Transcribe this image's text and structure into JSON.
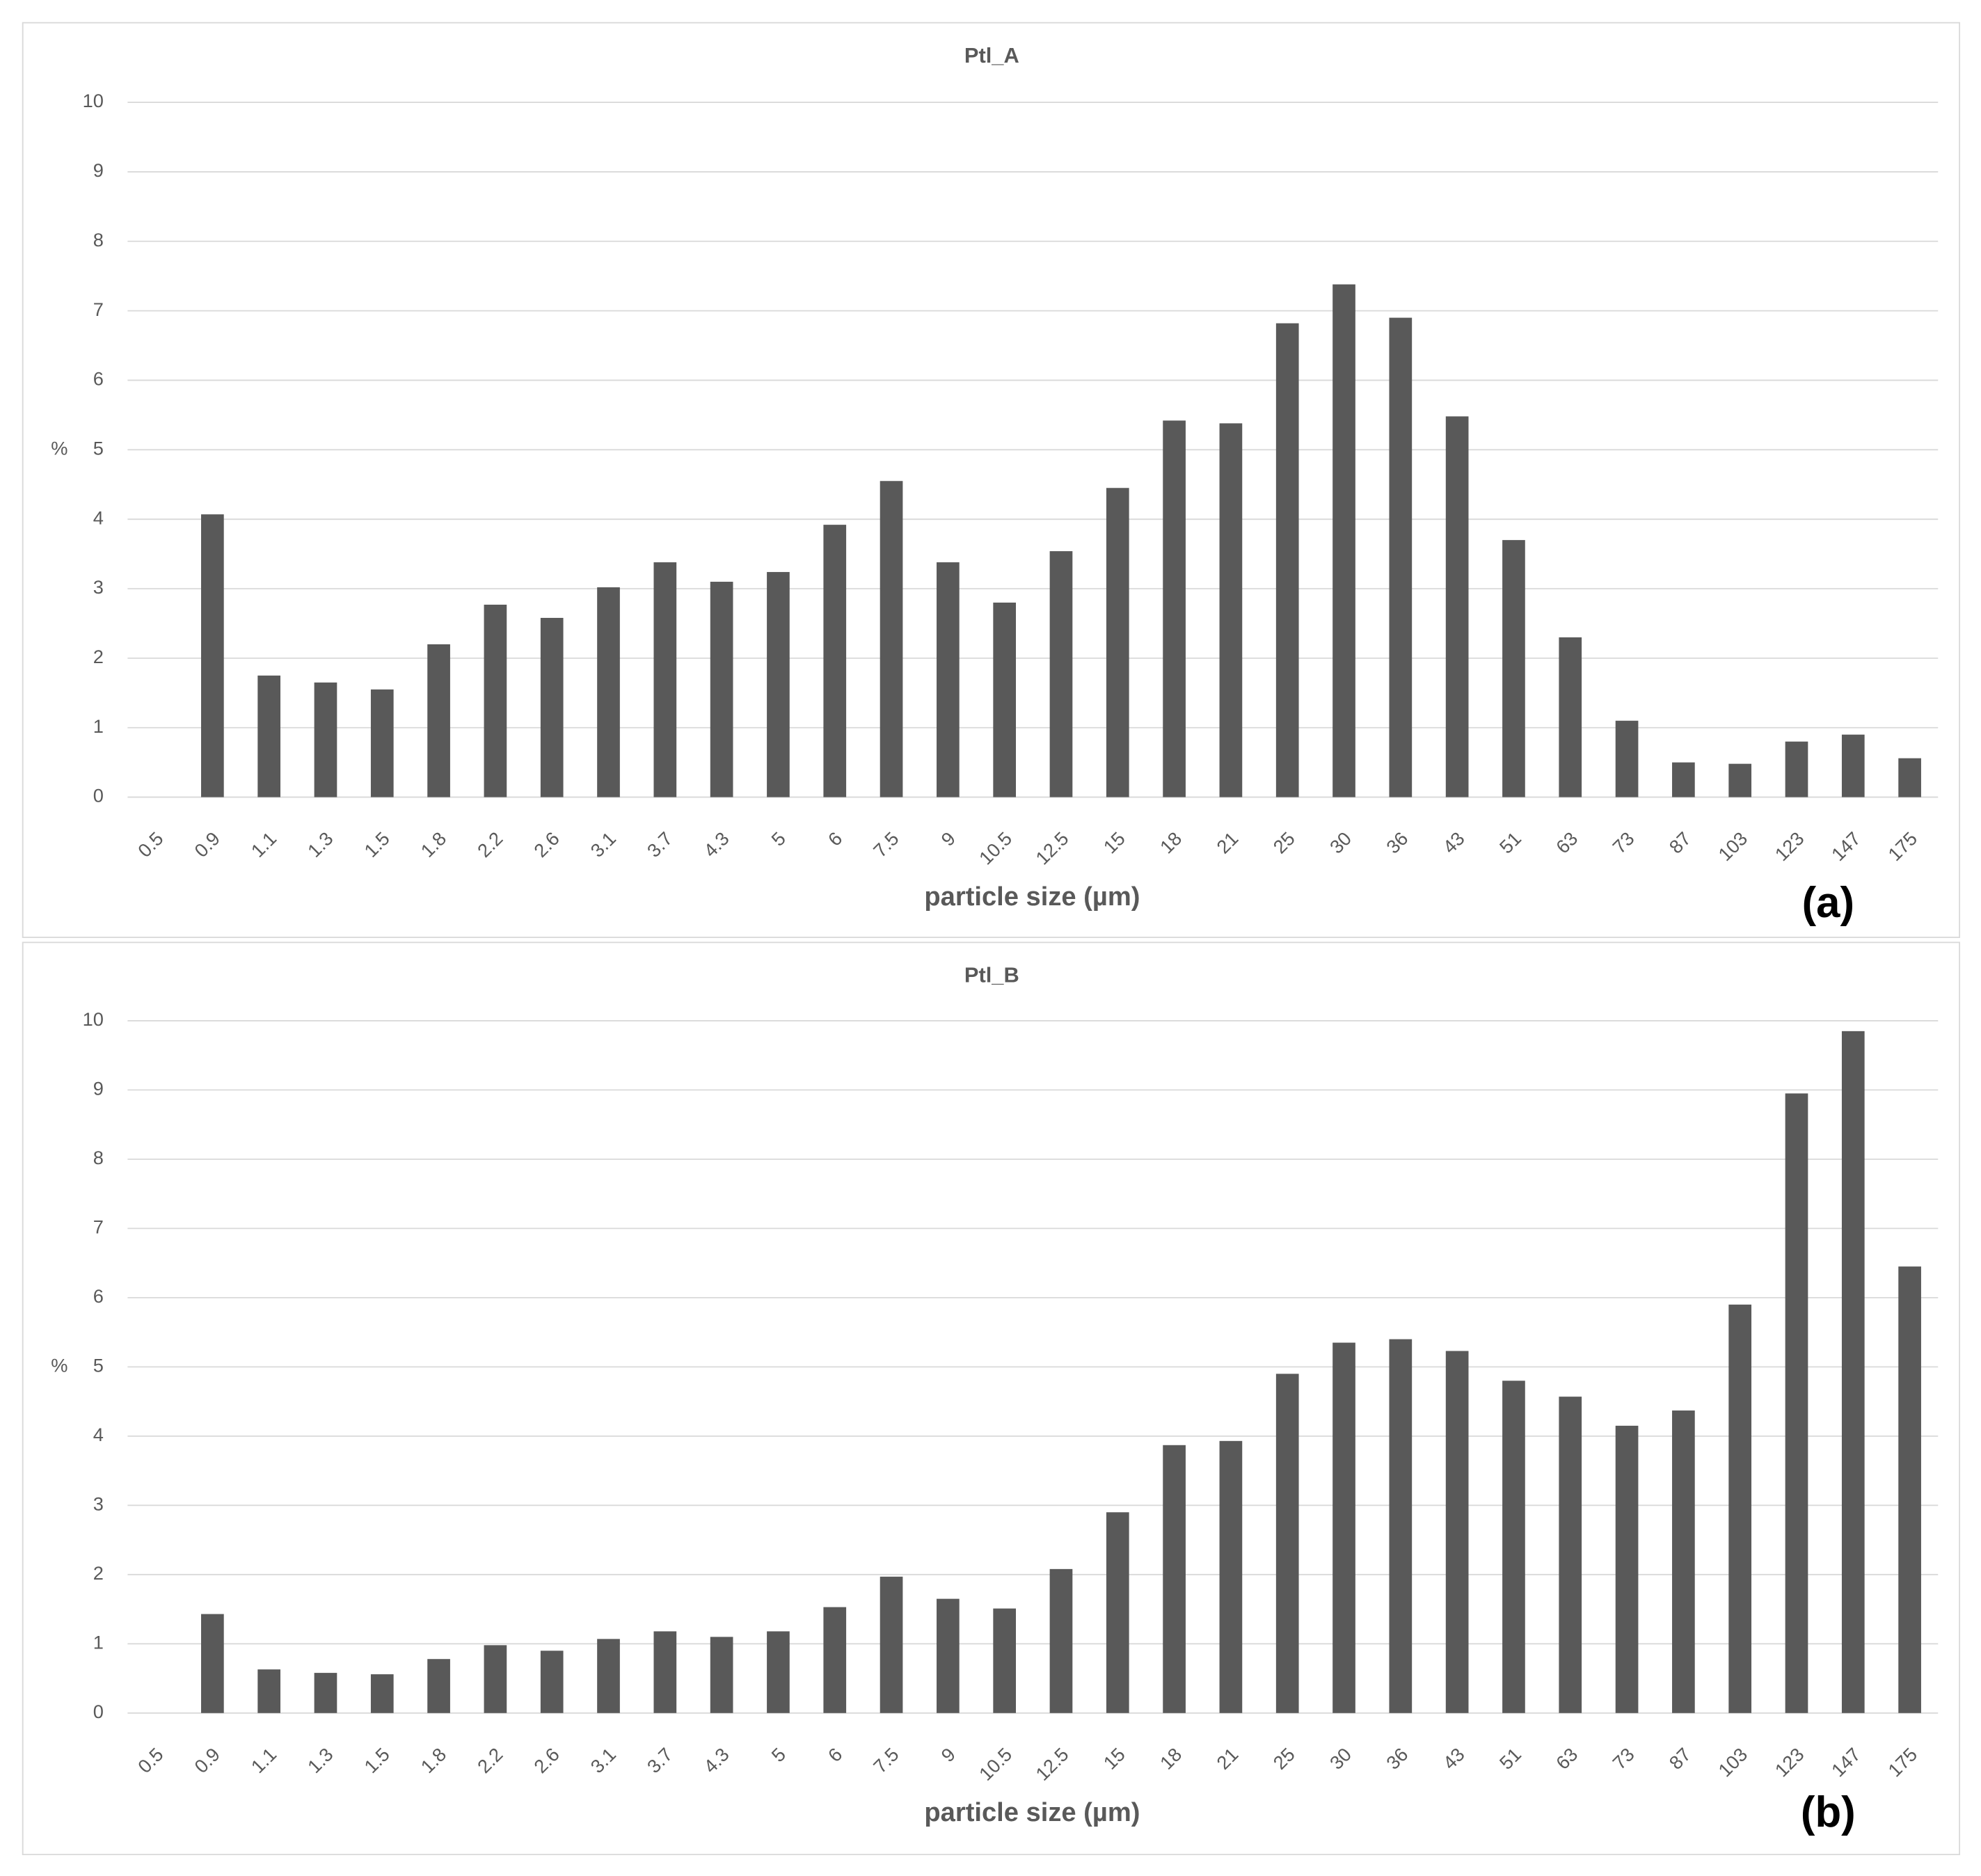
{
  "chart_data": [
    {
      "type": "bar",
      "title": "Ptl_A",
      "y_label": "%",
      "x_label": "particle size (µm)",
      "panel_label": "(a)",
      "categories": [
        "0.5",
        "0.9",
        "1.1",
        "1.3",
        "1.5",
        "1.8",
        "2.2",
        "2.6",
        "3.1",
        "3.7",
        "4.3",
        "5",
        "6",
        "7.5",
        "9",
        "10.5",
        "12.5",
        "15",
        "18",
        "21",
        "25",
        "30",
        "36",
        "43",
        "51",
        "63",
        "73",
        "87",
        "103",
        "123",
        "147",
        "175"
      ],
      "values": [
        0,
        4.07,
        1.75,
        1.65,
        1.55,
        2.2,
        2.77,
        2.58,
        3.02,
        3.38,
        3.1,
        3.24,
        3.92,
        4.55,
        3.38,
        2.8,
        3.54,
        4.45,
        5.42,
        5.38,
        6.82,
        7.38,
        6.9,
        5.48,
        3.7,
        2.3,
        1.1,
        0.5,
        0.48,
        0.8,
        0.9,
        0.56
      ],
      "color": "#595959",
      "ylim": [
        0,
        10
      ],
      "yticks": [
        0,
        1,
        2,
        3,
        4,
        5,
        6,
        7,
        8,
        9,
        10
      ],
      "grid": true
    },
    {
      "type": "bar",
      "title": "Ptl_B",
      "y_label": "%",
      "x_label": "particle size (µm)",
      "panel_label": "(b)",
      "categories": [
        "0.5",
        "0.9",
        "1.1",
        "1.3",
        "1.5",
        "1.8",
        "2.2",
        "2.6",
        "3.1",
        "3.7",
        "4.3",
        "5",
        "6",
        "7.5",
        "9",
        "10.5",
        "12.5",
        "15",
        "18",
        "21",
        "25",
        "30",
        "36",
        "43",
        "51",
        "63",
        "73",
        "87",
        "103",
        "123",
        "147",
        "175"
      ],
      "values": [
        0,
        1.43,
        0.63,
        0.58,
        0.56,
        0.78,
        0.98,
        0.9,
        1.07,
        1.18,
        1.1,
        1.18,
        1.53,
        1.97,
        1.65,
        1.51,
        2.08,
        2.9,
        3.87,
        3.93,
        4.9,
        5.35,
        5.4,
        5.23,
        4.8,
        4.57,
        4.15,
        4.37,
        5.9,
        8.95,
        9.85,
        6.45
      ],
      "color": "#595959",
      "ylim": [
        0,
        10
      ],
      "yticks": [
        0,
        1,
        2,
        3,
        4,
        5,
        6,
        7,
        8,
        9,
        10
      ],
      "grid": true
    }
  ]
}
